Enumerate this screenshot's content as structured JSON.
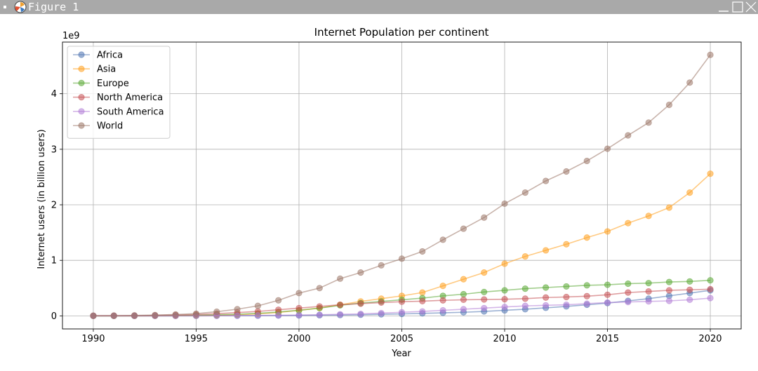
{
  "window": {
    "title": "Figure 1"
  },
  "chart_data": {
    "type": "line",
    "title": "Internet Population per continent",
    "xlabel": "Year",
    "ylabel": "Internet users (in billion users)",
    "offset_text": "1e9",
    "xlim": [
      1988.5,
      2021.5
    ],
    "ylim": [
      -0.235,
      4.93
    ],
    "xticks": [
      1990,
      1995,
      2000,
      2005,
      2010,
      2015,
      2020
    ],
    "yticks": [
      0,
      1,
      2,
      3,
      4
    ],
    "grid": true,
    "legend_position": "top-left",
    "x": [
      1990,
      1991,
      1992,
      1993,
      1994,
      1995,
      1996,
      1997,
      1998,
      1999,
      2000,
      2001,
      2002,
      2003,
      2004,
      2005,
      2006,
      2007,
      2008,
      2009,
      2010,
      2011,
      2012,
      2013,
      2014,
      2015,
      2016,
      2017,
      2018,
      2019,
      2020
    ],
    "series": [
      {
        "name": "Africa",
        "color": "#4c72b0",
        "values": [
          0,
          0,
          0,
          0,
          0,
          0.001,
          0.002,
          0.003,
          0.004,
          0.006,
          0.008,
          0.012,
          0.015,
          0.02,
          0.028,
          0.035,
          0.045,
          0.055,
          0.065,
          0.08,
          0.1,
          0.12,
          0.145,
          0.17,
          0.2,
          0.23,
          0.27,
          0.31,
          0.36,
          0.41,
          0.46
        ]
      },
      {
        "name": "Asia",
        "color": "#ff9e1b",
        "values": [
          0,
          0,
          0,
          0.001,
          0.002,
          0.005,
          0.01,
          0.02,
          0.035,
          0.06,
          0.1,
          0.14,
          0.2,
          0.26,
          0.31,
          0.36,
          0.42,
          0.54,
          0.66,
          0.78,
          0.94,
          1.07,
          1.18,
          1.29,
          1.41,
          1.52,
          1.67,
          1.8,
          1.95,
          2.22,
          2.56
        ]
      },
      {
        "name": "Europe",
        "color": "#55a630",
        "values": [
          0,
          0,
          0.001,
          0.003,
          0.006,
          0.012,
          0.02,
          0.03,
          0.045,
          0.07,
          0.1,
          0.14,
          0.19,
          0.23,
          0.26,
          0.29,
          0.32,
          0.36,
          0.39,
          0.43,
          0.46,
          0.49,
          0.51,
          0.53,
          0.55,
          0.56,
          0.58,
          0.59,
          0.61,
          0.62,
          0.64
        ]
      },
      {
        "name": "North America",
        "color": "#c44e52",
        "values": [
          0.002,
          0.003,
          0.005,
          0.009,
          0.015,
          0.025,
          0.04,
          0.06,
          0.08,
          0.11,
          0.14,
          0.17,
          0.2,
          0.22,
          0.24,
          0.255,
          0.265,
          0.28,
          0.29,
          0.295,
          0.3,
          0.31,
          0.33,
          0.34,
          0.355,
          0.38,
          0.42,
          0.44,
          0.46,
          0.47,
          0.48
        ]
      },
      {
        "name": "South America",
        "color": "#b07cd6",
        "values": [
          0,
          0,
          0,
          0,
          0,
          0.001,
          0.002,
          0.004,
          0.007,
          0.01,
          0.015,
          0.02,
          0.028,
          0.036,
          0.05,
          0.065,
          0.08,
          0.1,
          0.12,
          0.14,
          0.16,
          0.18,
          0.19,
          0.2,
          0.22,
          0.24,
          0.25,
          0.26,
          0.27,
          0.29,
          0.32
        ]
      },
      {
        "name": "World",
        "color": "#9b7566",
        "values": [
          0.003,
          0.005,
          0.008,
          0.014,
          0.025,
          0.04,
          0.075,
          0.12,
          0.18,
          0.28,
          0.41,
          0.5,
          0.67,
          0.78,
          0.91,
          1.03,
          1.16,
          1.37,
          1.57,
          1.77,
          2.02,
          2.22,
          2.43,
          2.6,
          2.79,
          3.01,
          3.25,
          3.48,
          3.8,
          4.2,
          4.7
        ]
      }
    ]
  }
}
